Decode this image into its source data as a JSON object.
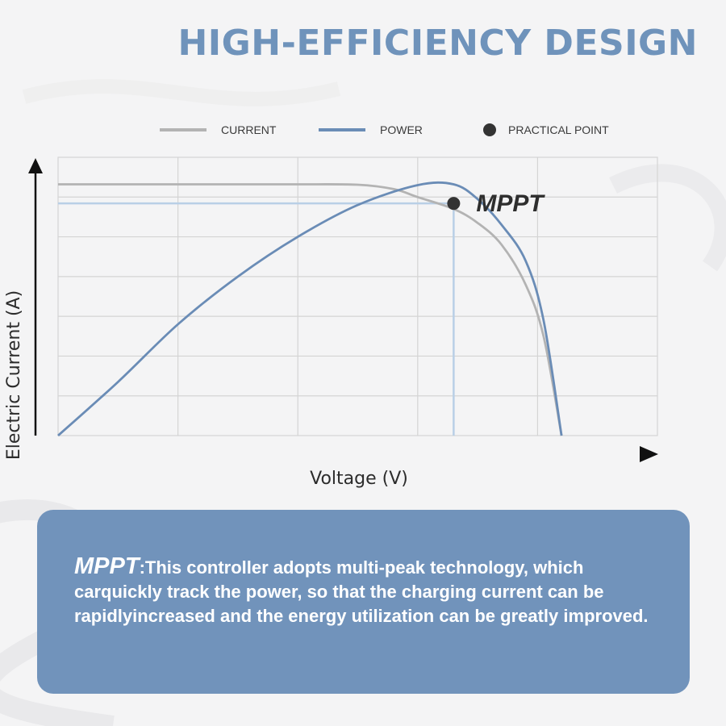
{
  "page_title": "HIGH-EFFICIENCY DESIGN",
  "colors": {
    "title": "#6f93bb",
    "current_line": "#b3b3b3",
    "power_line": "#6a8cb6",
    "practical_point": "#333333",
    "info_box": "#7193bb"
  },
  "chart_data": {
    "type": "line",
    "title": "",
    "xlabel": "Voltage (V)",
    "ylabel": "Electric Current (A)",
    "grid": true,
    "legend_position": "top",
    "xlim": [
      0,
      10
    ],
    "ylim": [
      0,
      7
    ],
    "legend": [
      {
        "name": "CURRENT",
        "kind": "line",
        "color": "#b3b3b3"
      },
      {
        "name": "POWER",
        "kind": "line",
        "color": "#6a8cb6"
      },
      {
        "name": "PRACTICAL POINT",
        "kind": "dot",
        "color": "#333333"
      }
    ],
    "series": [
      {
        "name": "CURRENT",
        "x": [
          0,
          1,
          2,
          3,
          4,
          5,
          5.6,
          6,
          6.6,
          7,
          7.4,
          7.8,
          8.1,
          8.4
        ],
        "values": [
          6.32,
          6.32,
          6.32,
          6.32,
          6.32,
          6.31,
          6.2,
          6.0,
          5.7,
          5.35,
          4.8,
          3.8,
          2.5,
          0
        ]
      },
      {
        "name": "POWER",
        "x": [
          0,
          1,
          2,
          3,
          4,
          5,
          6,
          6.6,
          7,
          7.4,
          7.8,
          8.1,
          8.4
        ],
        "values": [
          0,
          1.35,
          2.8,
          4.0,
          5.0,
          5.8,
          6.3,
          6.32,
          5.95,
          5.3,
          4.4,
          2.9,
          0
        ]
      }
    ],
    "annotation": {
      "label": "MPPT",
      "x": 6.6,
      "y": 5.84
    }
  },
  "info": {
    "keyword": "MPPT",
    "text": ":This controller adopts multi-peak technology, which carquickly track the power, so that the charging current can be rapidlyincreased and the energy utilization can be greatly improved."
  }
}
